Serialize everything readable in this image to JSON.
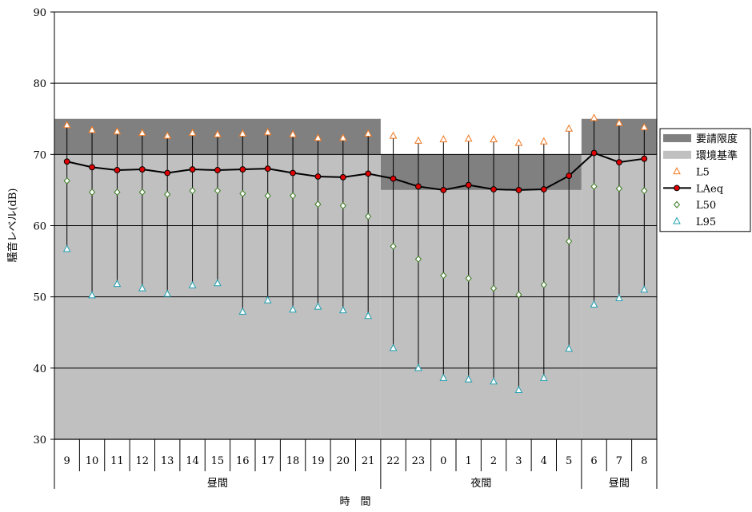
{
  "chart_data": {
    "type": "line",
    "xlabel": "時　間",
    "ylabel": "騒音レベル(dB)",
    "ylim": [
      30,
      90
    ],
    "y_ticks": [
      "30",
      "40",
      "50",
      "60",
      "70",
      "80",
      "90"
    ],
    "grid": "horizontal",
    "categories": [
      "9",
      "10",
      "11",
      "12",
      "13",
      "14",
      "15",
      "16",
      "17",
      "18",
      "19",
      "20",
      "21",
      "22",
      "23",
      "0",
      "1",
      "2",
      "3",
      "4",
      "5",
      "6",
      "7",
      "8"
    ],
    "period_groups": [
      {
        "label": "昼間",
        "start": 0,
        "end": 12
      },
      {
        "label": "夜間",
        "start": 13,
        "end": 20
      },
      {
        "label": "昼間",
        "start": 21,
        "end": 23
      }
    ],
    "bands": [
      {
        "name": "要請限度",
        "color": "#808080",
        "segments": [
          {
            "start": 0,
            "end": 12,
            "from": 70,
            "to": 75
          },
          {
            "start": 13,
            "end": 20,
            "from": 65,
            "to": 70
          },
          {
            "start": 21,
            "end": 23,
            "from": 70,
            "to": 75
          }
        ]
      },
      {
        "name": "環境基準",
        "color": "#c0c0c0",
        "segments": [
          {
            "start": 0,
            "end": 12,
            "from": 30,
            "to": 70
          },
          {
            "start": 13,
            "end": 20,
            "from": 30,
            "to": 65
          },
          {
            "start": 21,
            "end": 23,
            "from": 30,
            "to": 70
          }
        ]
      }
    ],
    "series": [
      {
        "name": "L5",
        "marker": "triangle",
        "color": "#f07820",
        "values": [
          74.1,
          73.4,
          73.2,
          73.0,
          72.6,
          73.0,
          72.8,
          72.9,
          73.1,
          72.8,
          72.3,
          72.3,
          72.9,
          72.6,
          71.9,
          72.1,
          72.2,
          72.1,
          71.6,
          71.8,
          73.6,
          75.1,
          74.4,
          73.8
        ]
      },
      {
        "name": "LAeq",
        "marker": "circle",
        "color": "#e00000",
        "values": [
          69.0,
          68.2,
          67.8,
          67.9,
          67.4,
          67.9,
          67.8,
          67.9,
          68.0,
          67.4,
          66.9,
          66.8,
          67.3,
          66.6,
          65.5,
          65.0,
          65.7,
          65.1,
          65.0,
          65.1,
          67.0,
          70.2,
          68.9,
          69.4
        ]
      },
      {
        "name": "L50",
        "marker": "diamond",
        "color": "#3a7a20",
        "values": [
          66.3,
          64.7,
          64.7,
          64.7,
          64.4,
          64.9,
          64.9,
          64.5,
          64.2,
          64.2,
          63.0,
          62.8,
          61.3,
          57.1,
          55.3,
          53.0,
          52.6,
          51.2,
          50.3,
          51.7,
          57.8,
          65.5,
          65.2,
          64.9
        ]
      },
      {
        "name": "L95",
        "marker": "triangle",
        "color": "#20a0b0",
        "values": [
          56.7,
          50.2,
          51.8,
          51.2,
          50.4,
          51.6,
          51.9,
          47.9,
          49.5,
          48.2,
          48.6,
          48.1,
          47.3,
          42.8,
          40.0,
          38.6,
          38.4,
          38.1,
          36.9,
          38.6,
          42.7,
          48.9,
          49.8,
          51.0
        ]
      }
    ],
    "legend": {
      "position": "right",
      "entries": [
        "要請限度",
        "環境基準",
        "L5",
        "LAeq",
        "L50",
        "L95"
      ]
    }
  }
}
